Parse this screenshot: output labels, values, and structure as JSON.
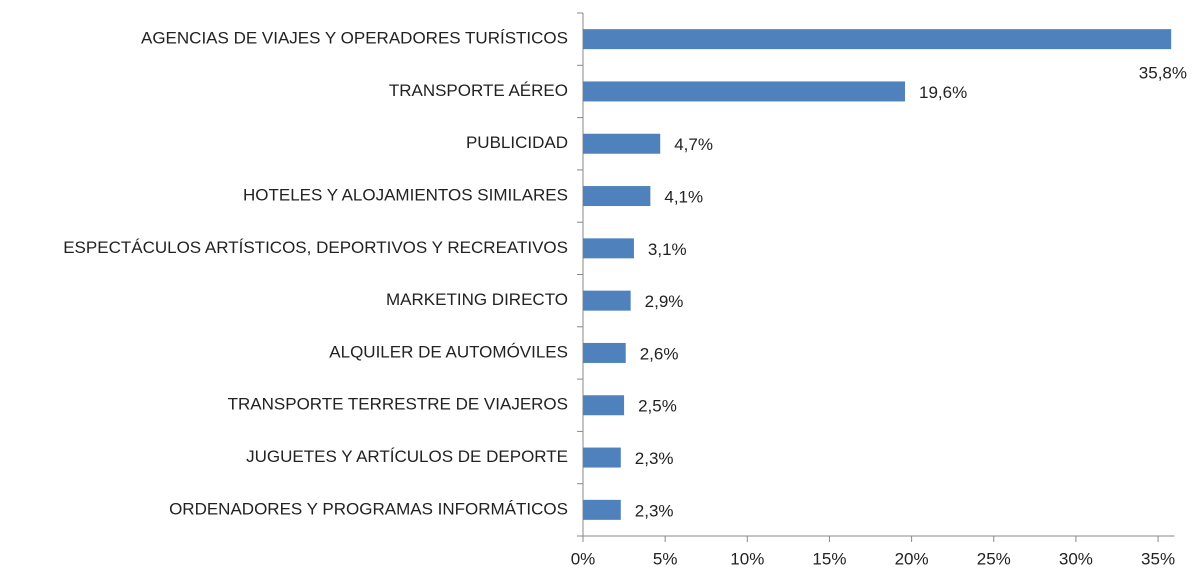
{
  "chart_data": {
    "type": "barh",
    "categories": [
      "AGENCIAS DE VIAJES Y OPERADORES TURÍSTICOS",
      "TRANSPORTE AÉREO",
      "PUBLICIDAD",
      "HOTELES  Y ALOJAMIENTOS SIMILARES",
      "ESPECTÁCULOS ARTÍSTICOS, DEPORTIVOS Y RECREATIVOS",
      "MARKETING DIRECTO",
      "ALQUILER DE AUTOMÓVILES",
      "TRANSPORTE TERRESTRE DE VIAJEROS",
      "JUGUETES Y ARTÍCULOS DE DEPORTE",
      "ORDENADORES Y PROGRAMAS INFORMÁTICOS"
    ],
    "values": [
      35.8,
      19.6,
      4.7,
      4.1,
      3.1,
      2.9,
      2.6,
      2.5,
      2.3,
      2.3
    ],
    "value_labels": [
      "35,8%",
      "19,6%",
      "4,7%",
      "4,1%",
      "3,1%",
      "2,9%",
      "2,6%",
      "2,5%",
      "2,3%",
      "2,3%"
    ],
    "color": "#4f81bd",
    "xlim": [
      0,
      36
    ],
    "xticks": [
      {
        "value": 0,
        "label": "0%"
      },
      {
        "value": 5,
        "label": "5%"
      },
      {
        "value": 10,
        "label": "10%"
      },
      {
        "value": 15,
        "label": "15%"
      },
      {
        "value": 20,
        "label": "20%"
      },
      {
        "value": 25,
        "label": "25%"
      },
      {
        "value": 30,
        "label": "30%"
      },
      {
        "value": 35,
        "label": "35%"
      }
    ],
    "grid": false
  }
}
